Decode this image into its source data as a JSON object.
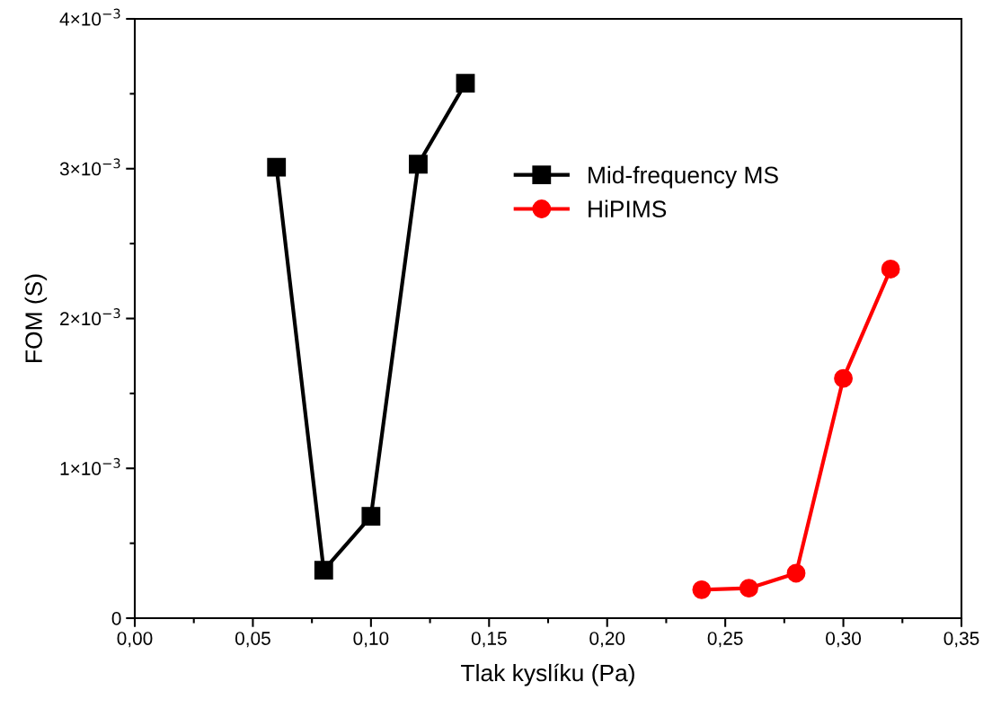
{
  "chart_data": {
    "type": "line",
    "xlabel": "Tlak kyslíku (Pa)",
    "ylabel": "FOM (S)",
    "xlim": [
      0,
      0.35
    ],
    "ylim": [
      0,
      0.004
    ],
    "xticks": [
      {
        "value": 0,
        "label": "0,00"
      },
      {
        "value": 0.05,
        "label": "0,05"
      },
      {
        "value": 0.1,
        "label": "0,10"
      },
      {
        "value": 0.15,
        "label": "0,15"
      },
      {
        "value": 0.2,
        "label": "0,20"
      },
      {
        "value": 0.25,
        "label": "0,25"
      },
      {
        "value": 0.3,
        "label": "0,30"
      },
      {
        "value": 0.35,
        "label": "0,35"
      }
    ],
    "yticks": [
      {
        "value": 0,
        "label": "0"
      },
      {
        "value": 0.001,
        "label": "1×10$^{−3}$"
      },
      {
        "value": 0.002,
        "label": "2×10$^{−3}$"
      },
      {
        "value": 0.003,
        "label": "3×10$^{−3}$"
      },
      {
        "value": 0.004,
        "label": "4×10$^{−3}$"
      }
    ],
    "legend": "top",
    "grid": false,
    "line_style": "solid",
    "series": [
      {
        "name": "Mid-frequency MS",
        "color": "#000000",
        "marker": "square",
        "x": [
          0.06,
          0.08,
          0.1,
          0.12,
          0.14
        ],
        "values": [
          0.00301,
          0.00032,
          0.00068,
          0.00303,
          0.00357
        ]
      },
      {
        "name": "HiPIMS",
        "color": "#ff0000",
        "marker": "circle",
        "x": [
          0.24,
          0.26,
          0.28,
          0.3,
          0.32
        ],
        "values": [
          0.00019,
          0.0002,
          0.0003,
          0.0016,
          0.00233
        ]
      }
    ]
  }
}
